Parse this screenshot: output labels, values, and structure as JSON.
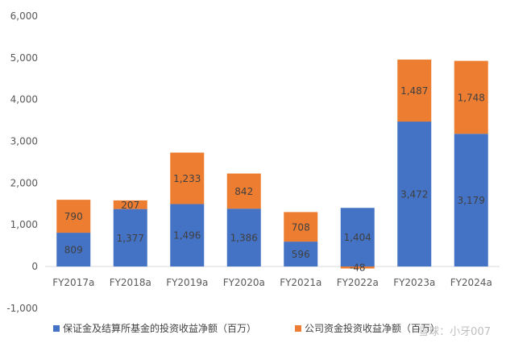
{
  "chart_data": {
    "type": "bar",
    "stacked": true,
    "categories": [
      "FY2017a",
      "FY2018a",
      "FY2019a",
      "FY2020a",
      "FY2021a",
      "FY2022a",
      "FY2023a",
      "FY2024a"
    ],
    "series": [
      {
        "name": "保证金及结算所基金的投资收益净额（百万）",
        "color": "#4472C4",
        "values": [
          809,
          1377,
          1496,
          1386,
          596,
          1404,
          3472,
          3179
        ],
        "labels": [
          "809",
          "1,377",
          "1,496",
          "1,386",
          "596",
          "1,404",
          "3,472",
          "3,179"
        ]
      },
      {
        "name": "公司资金投资收益净额（百万）",
        "color": "#ED7D31",
        "values": [
          790,
          207,
          1233,
          842,
          708,
          -48,
          1487,
          1748
        ],
        "labels": [
          "790",
          "207",
          "1,233",
          "842",
          "708",
          "-48",
          "1,487",
          "1,748"
        ],
        "negative_label_color": "#FF0000"
      }
    ],
    "ylim": [
      -1000,
      6000
    ],
    "yticks": [
      -1000,
      0,
      1000,
      2000,
      3000,
      4000,
      5000,
      6000
    ],
    "ytick_labels": [
      "-1,000",
      "0",
      "1,000",
      "2,000",
      "3,000",
      "4,000",
      "5,000",
      "6,000"
    ],
    "negative_tick_color": "#FF0000",
    "grid": false,
    "legend": "bottom",
    "title": "",
    "xlabel": "",
    "ylabel": ""
  },
  "watermark": "雪球：小牙007"
}
